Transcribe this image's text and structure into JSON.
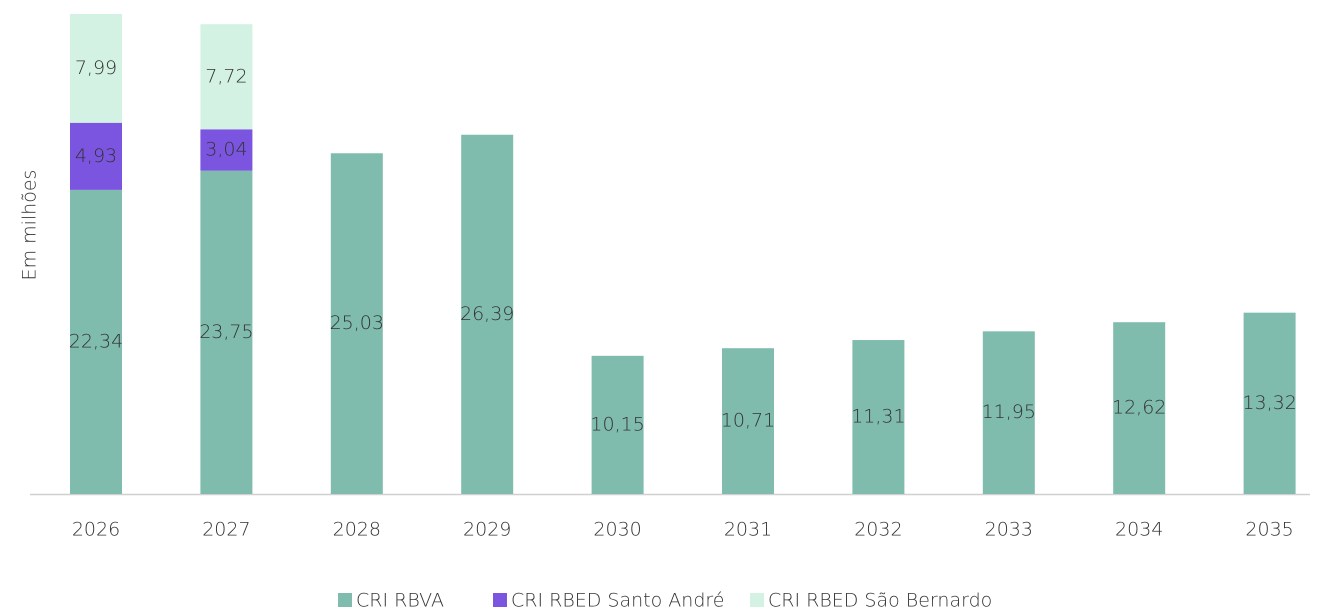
{
  "chart_data": {
    "type": "stacked_bar",
    "y_label": "Em milhões",
    "categories": [
      "2026",
      "2027",
      "2028",
      "2029",
      "2030",
      "2031",
      "2032",
      "2033",
      "2034",
      "2035"
    ],
    "series": [
      {
        "name": "CRI RBVA",
        "color": "#80bcad",
        "values": [
          22.34,
          23.75,
          25.03,
          26.39,
          10.15,
          10.71,
          11.31,
          11.95,
          12.62,
          13.32
        ],
        "value_labels": [
          "22,34",
          "23,75",
          "25,03",
          "26,39",
          "10,15",
          "10,71",
          "11,31",
          "11,95",
          "12,62",
          "13,32"
        ]
      },
      {
        "name": "CRI RBED Santo André",
        "color": "#7b55e0",
        "values": [
          4.93,
          3.04,
          null,
          null,
          null,
          null,
          null,
          null,
          null,
          null
        ],
        "value_labels": [
          "4,93",
          "3,04",
          null,
          null,
          null,
          null,
          null,
          null,
          null,
          null
        ]
      },
      {
        "name": "CRI RBED São Bernardo",
        "color": "#d3f2e3",
        "values": [
          7.99,
          7.72,
          null,
          null,
          null,
          null,
          null,
          null,
          null,
          null
        ],
        "value_labels": [
          "7,99",
          "7,72",
          null,
          null,
          null,
          null,
          null,
          null,
          null,
          null
        ]
      }
    ],
    "legend": "bottom"
  }
}
